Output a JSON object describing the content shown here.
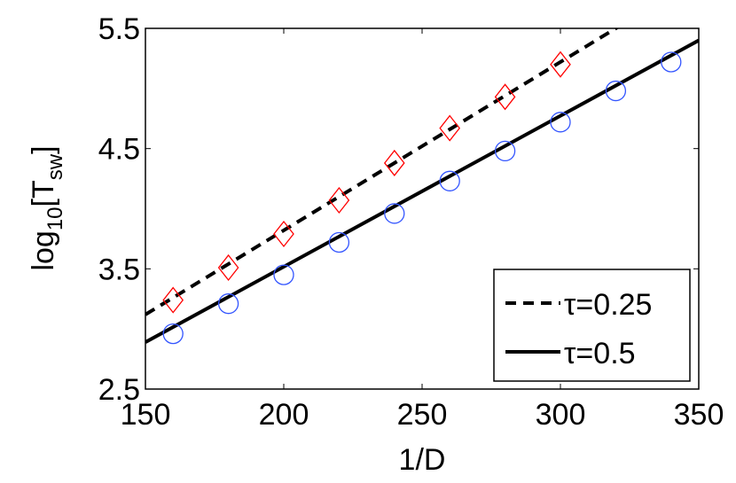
{
  "chart_data": {
    "type": "scatter",
    "title": "",
    "xlabel": "1/D",
    "ylabel_main": "log",
    "ylabel_sub": "10",
    "ylabel_bracket_open": "[T",
    "ylabel_bracket_sub": "sw",
    "ylabel_bracket_close": "]",
    "xlim": [
      150,
      350
    ],
    "ylim": [
      2.5,
      5.5
    ],
    "xticks": [
      150,
      200,
      250,
      300,
      350
    ],
    "xtick_labels": [
      "150",
      "200",
      "250",
      "300",
      "350"
    ],
    "yticks": [
      2.5,
      3.5,
      4.5,
      5.5
    ],
    "ytick_labels": [
      "2.5",
      "3.5",
      "4.5",
      "5.5"
    ],
    "grid": false,
    "legend_placement": "bottom-right",
    "series": [
      {
        "name": "τ=0.25",
        "marker": "diamond",
        "marker_color": "#ff0000",
        "line_style": "dashed",
        "line_color": "#000000",
        "x": [
          160,
          180,
          200,
          220,
          240,
          260,
          280,
          300
        ],
        "y": [
          3.24,
          3.51,
          3.79,
          4.07,
          4.38,
          4.67,
          4.93,
          5.2
        ],
        "fit": {
          "slope": 0.014,
          "intercept_at_150": 3.12
        }
      },
      {
        "name": "τ=0.5",
        "marker": "circle",
        "marker_color": "#3355ff",
        "line_style": "solid",
        "line_color": "#000000",
        "x": [
          160,
          180,
          200,
          220,
          240,
          260,
          280,
          300,
          320,
          340
        ],
        "y": [
          2.96,
          3.21,
          3.45,
          3.72,
          3.96,
          4.23,
          4.48,
          4.72,
          4.98,
          5.22
        ],
        "fit": {
          "slope": 0.01255,
          "intercept_at_150": 2.89
        }
      }
    ]
  }
}
